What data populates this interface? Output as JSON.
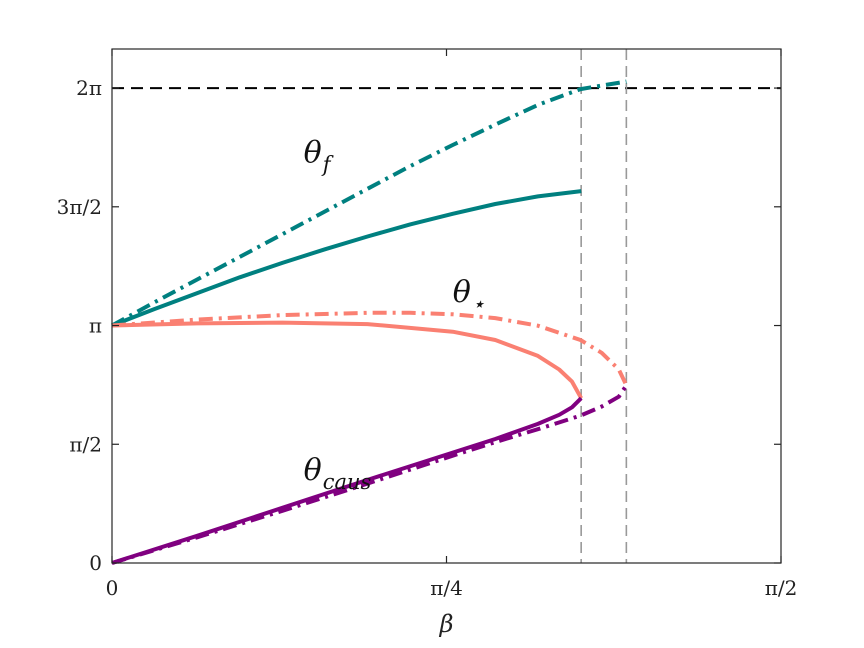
{
  "chart_data": {
    "type": "line",
    "xlabel": "β",
    "xlim": [
      0,
      1.5708
    ],
    "ylim": [
      0,
      6.8
    ],
    "x_ticks": [
      {
        "value": 0,
        "label": "0"
      },
      {
        "value": 0.7854,
        "label": "π/4"
      },
      {
        "value": 1.5708,
        "label": "π/2"
      }
    ],
    "y_ticks": [
      {
        "value": 0,
        "label": "0"
      },
      {
        "value": 1.5708,
        "label": "π/2"
      },
      {
        "value": 3.1416,
        "label": "π"
      },
      {
        "value": 4.7124,
        "label": "3π/2"
      },
      {
        "value": 6.2832,
        "label": "2π"
      }
    ],
    "grid": false,
    "annotations": [
      {
        "main": "θ",
        "sub": "f",
        "x": 0.45,
        "y": 5.3
      },
      {
        "main": "θ",
        "sub": "⋆",
        "x": 0.8,
        "y": 3.45
      },
      {
        "main": "θ",
        "sub": "caus",
        "x": 0.45,
        "y": 1.1
      }
    ],
    "reference_lines": [
      {
        "orientation": "horizontal",
        "value": 6.2832,
        "color": "#000000",
        "style": "dashed"
      },
      {
        "orientation": "vertical",
        "value": 1.1016,
        "color": "#999999",
        "style": "dashed"
      },
      {
        "orientation": "vertical",
        "value": 1.2077,
        "color": "#999999",
        "style": "dashed"
      }
    ],
    "series": [
      {
        "color": "#008080",
        "style": "solid",
        "x": [
          0,
          0.1,
          0.2,
          0.3,
          0.4,
          0.5,
          0.6,
          0.7,
          0.8,
          0.9,
          1.0,
          1.1016
        ],
        "y": [
          3.1416,
          3.36,
          3.57,
          3.78,
          3.97,
          4.15,
          4.32,
          4.48,
          4.62,
          4.75,
          4.85,
          4.92
        ]
      },
      {
        "color": "#008080",
        "style": "dashdot",
        "x": [
          0,
          0.1,
          0.2,
          0.3,
          0.4,
          0.5,
          0.6,
          0.7,
          0.8,
          0.9,
          1.0,
          1.1,
          1.2077
        ],
        "y": [
          3.1416,
          3.45,
          3.75,
          4.05,
          4.35,
          4.65,
          4.95,
          5.25,
          5.53,
          5.8,
          6.06,
          6.27,
          6.37
        ]
      },
      {
        "color": "#FA8072",
        "style": "solid",
        "x": [
          0,
          0.2,
          0.4,
          0.6,
          0.8,
          0.9,
          1.0,
          1.05,
          1.08,
          1.1016
        ],
        "y": [
          3.1416,
          3.17,
          3.18,
          3.16,
          3.06,
          2.95,
          2.74,
          2.56,
          2.4,
          2.18
        ]
      },
      {
        "color": "#FA8072",
        "style": "dashdot",
        "x": [
          0,
          0.2,
          0.4,
          0.6,
          0.7,
          0.8,
          0.9,
          1.0,
          1.1,
          1.15,
          1.19,
          1.2077
        ],
        "y": [
          3.1416,
          3.22,
          3.28,
          3.31,
          3.31,
          3.29,
          3.24,
          3.14,
          2.95,
          2.78,
          2.56,
          2.35
        ]
      },
      {
        "color": "#800080",
        "style": "solid",
        "x": [
          0,
          0.2,
          0.4,
          0.6,
          0.8,
          0.9,
          1.0,
          1.05,
          1.08,
          1.1016
        ],
        "y": [
          0,
          0.36,
          0.73,
          1.1,
          1.46,
          1.64,
          1.84,
          1.96,
          2.06,
          2.18
        ]
      },
      {
        "color": "#800080",
        "style": "dashdot",
        "x": [
          0,
          0.2,
          0.4,
          0.6,
          0.8,
          0.9,
          1.0,
          1.1,
          1.15,
          1.19,
          1.2077
        ],
        "y": [
          0,
          0.34,
          0.69,
          1.05,
          1.42,
          1.6,
          1.77,
          1.95,
          2.07,
          2.2,
          2.35
        ]
      }
    ]
  }
}
